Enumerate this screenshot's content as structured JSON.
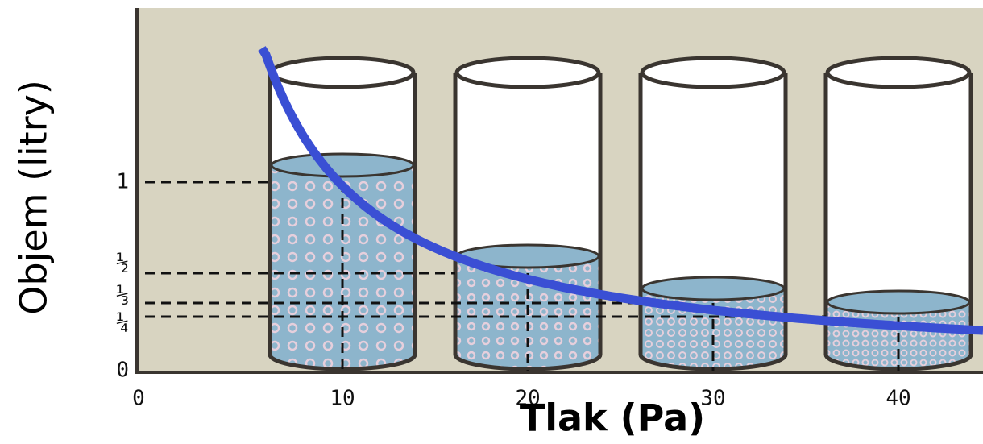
{
  "y_axis_label": "Objem (litry)",
  "x_axis_label": "Tlak (Pa)",
  "x_ticks": [
    "0",
    "10",
    "20",
    "30",
    "40"
  ],
  "y_ticks": [
    "0",
    "¼",
    "⅓",
    "½",
    "1"
  ]
}
